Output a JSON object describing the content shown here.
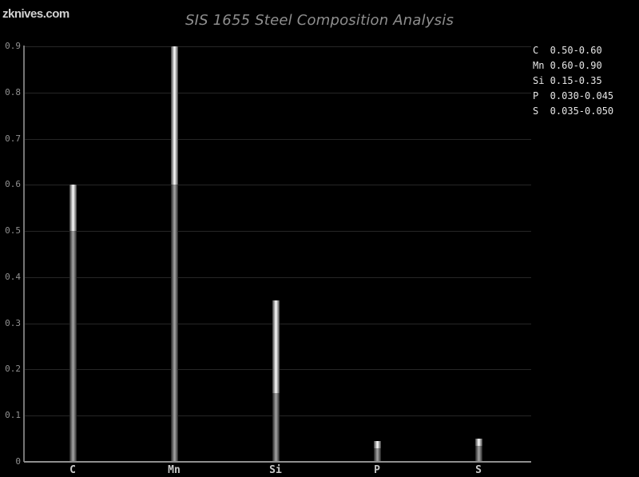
{
  "page": {
    "watermark": "zknives.com"
  },
  "chart_data": {
    "type": "bar",
    "subtype": "range-bar",
    "title": "SIS 1655 Steel Composition Analysis",
    "categories": [
      "C",
      "Mn",
      "Si",
      "P",
      "S"
    ],
    "series": [
      {
        "name": "min",
        "values": [
          0.5,
          0.6,
          0.15,
          0.03,
          0.035
        ]
      },
      {
        "name": "max",
        "values": [
          0.6,
          0.9,
          0.35,
          0.045,
          0.05
        ]
      }
    ],
    "legend": [
      {
        "element": "C",
        "range": "0.50-0.60"
      },
      {
        "element": "Mn",
        "range": "0.60-0.90"
      },
      {
        "element": "Si",
        "range": "0.15-0.35"
      },
      {
        "element": "P",
        "range": "0.030-0.045"
      },
      {
        "element": "S",
        "range": "0.035-0.050"
      }
    ],
    "legend_position": "top-right",
    "xlabel": "",
    "ylabel": "",
    "ylim": [
      0,
      0.9
    ],
    "ytick_values": [
      0,
      0.1,
      0.2,
      0.3,
      0.4,
      0.5,
      0.6,
      0.7,
      0.8,
      0.9
    ],
    "ytick_labels": [
      "0",
      "0.1",
      "0.2",
      "0.3",
      "0.4",
      "0.5",
      "0.6",
      "0.7",
      "0.8",
      "0.9"
    ],
    "grid": true,
    "colors": {
      "background": "#000000",
      "gridline": "#262626",
      "y_axis": "#757575",
      "x_axis": "#8f8f8f",
      "bar_highlight_center": "#f9f9f9",
      "bar_highlight_edge": "#3c3c3c",
      "bar_base_center": "#a2a2a2",
      "bar_base_edge": "#1f1f1f",
      "title_text": "#8e8e8e",
      "y_tick_text": "#919191",
      "x_tick_text": "#c8c8c8",
      "legend_text": "#e6e6e6",
      "watermark_text": "#d2d2d2"
    }
  }
}
